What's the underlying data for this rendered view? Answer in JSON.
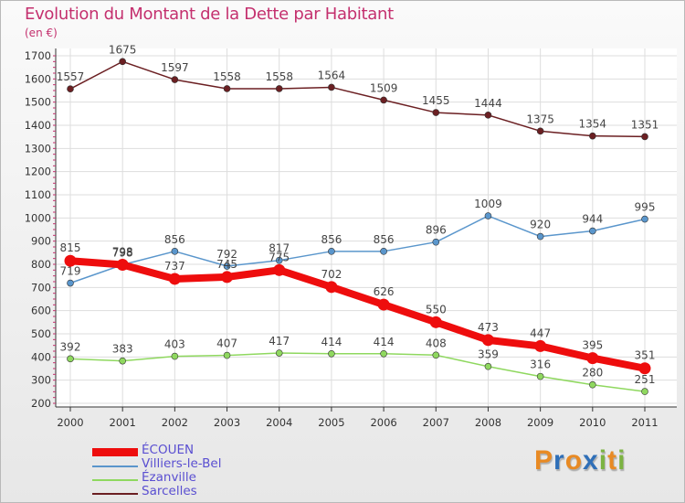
{
  "title": "Evolution du Montant de la Dette par Habitant",
  "unit": "(en €)",
  "brand": {
    "letters": [
      "P",
      "r",
      "o",
      "x",
      "i",
      "t",
      "i"
    ],
    "colors": [
      "#e88a24",
      "#2f6fb8",
      "#e88a24",
      "#2f6fb8",
      "#7cb342",
      "#e88a24",
      "#7cb342"
    ]
  },
  "chart_data": {
    "type": "line",
    "x": [
      "2000",
      "2001",
      "2002",
      "2003",
      "2004",
      "2005",
      "2006",
      "2007",
      "2008",
      "2009",
      "2010",
      "2011"
    ],
    "ylim": [
      200,
      1700
    ],
    "yticks": [
      200,
      300,
      400,
      500,
      600,
      700,
      800,
      900,
      1000,
      1100,
      1200,
      1300,
      1400,
      1500,
      1600,
      1700
    ],
    "grid": true,
    "legend_position": "bottom-left",
    "series": [
      {
        "name": "Sarcelles",
        "color": "#6b1f22",
        "values": [
          1557,
          1675,
          1597,
          1558,
          1558,
          1564,
          1509,
          1455,
          1444,
          1375,
          1354,
          1351
        ]
      },
      {
        "name": "Villiers-le-Bel",
        "color": "#5a96cc",
        "values": [
          719,
          798,
          856,
          792,
          817,
          856,
          856,
          896,
          1009,
          920,
          944,
          995
        ]
      },
      {
        "name": "Ézanville",
        "color": "#8fd85f",
        "values": [
          392,
          383,
          403,
          407,
          417,
          414,
          414,
          408,
          359,
          316,
          280,
          251
        ]
      },
      {
        "name": "ÉCOUEN",
        "color": "#ee0d0d",
        "values": [
          815,
          798,
          737,
          745,
          775,
          702,
          626,
          550,
          473,
          447,
          395,
          351
        ]
      }
    ],
    "legend_order": [
      "ÉCOUEN",
      "Villiers-le-Bel",
      "Ézanville",
      "Sarcelles"
    ]
  }
}
